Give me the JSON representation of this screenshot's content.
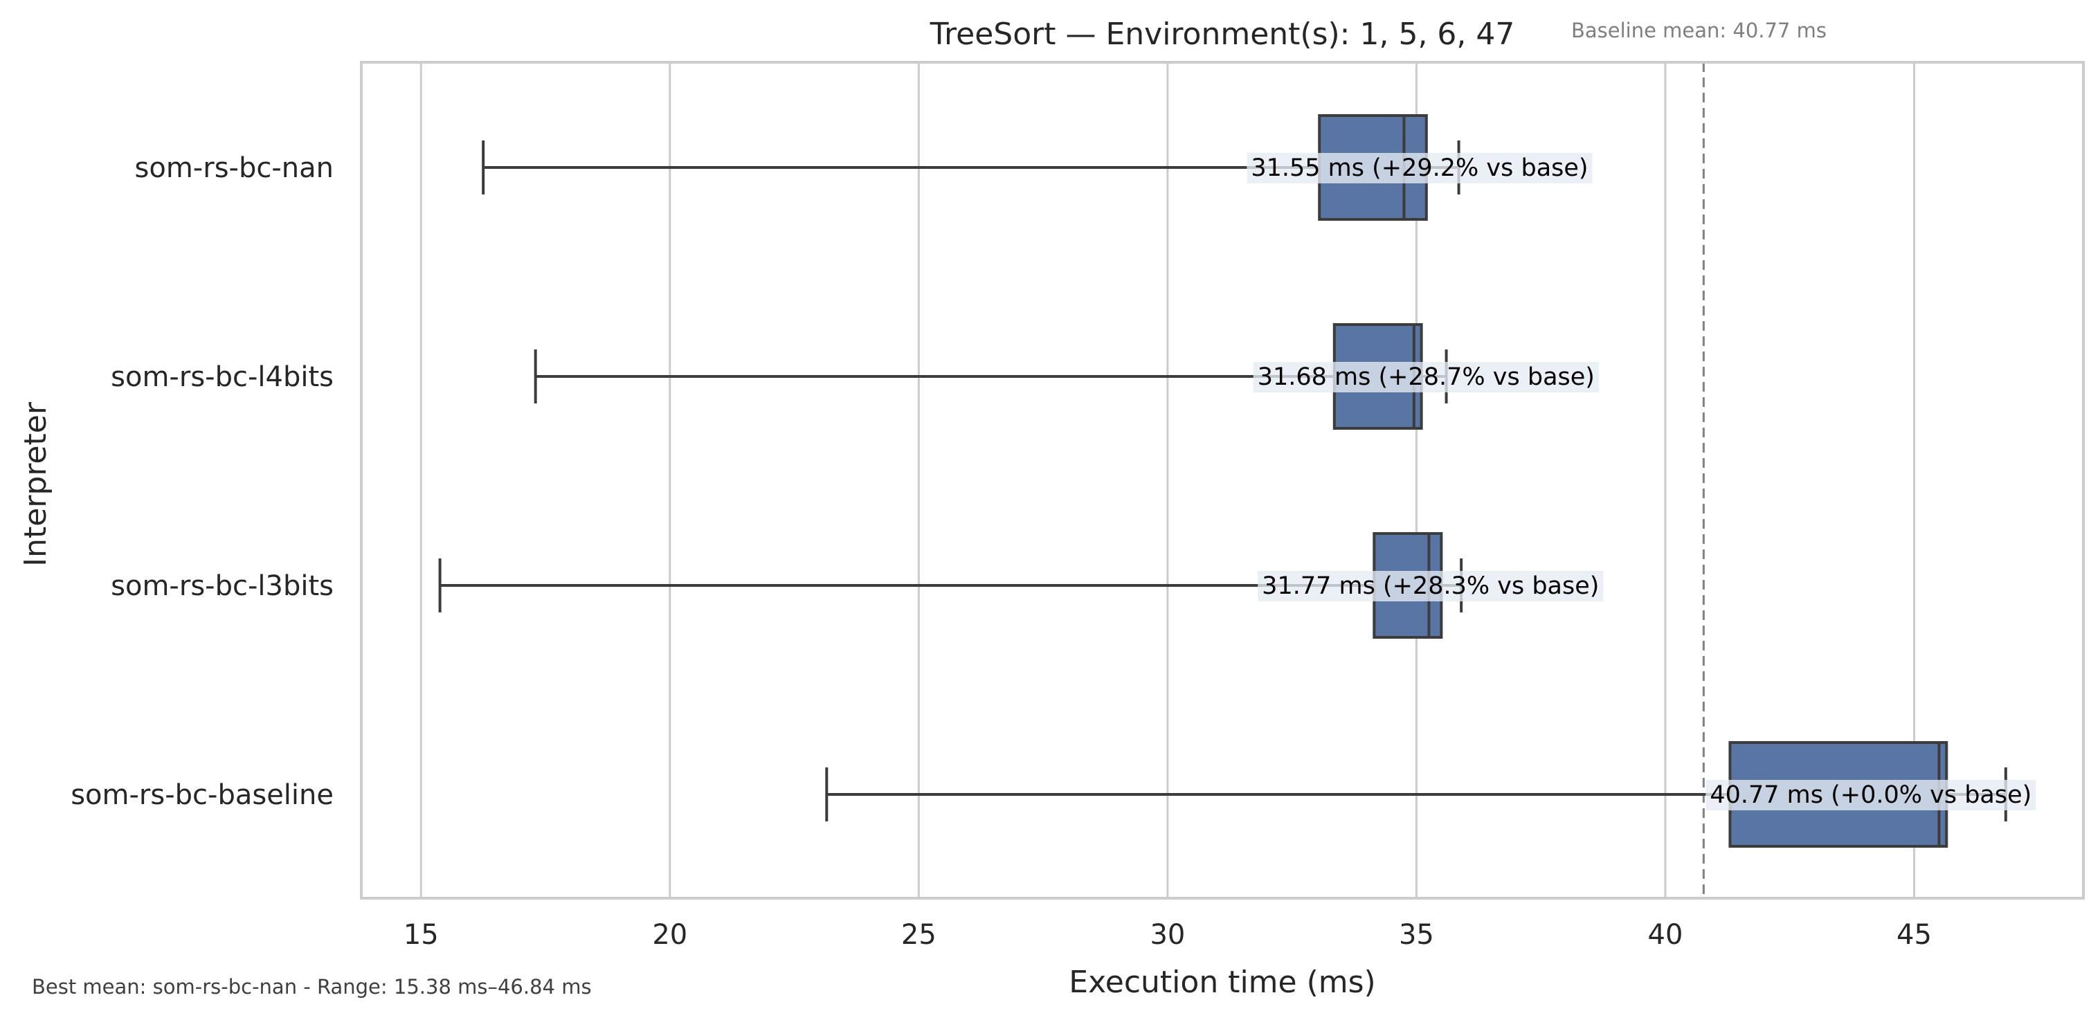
{
  "chart_data": {
    "type": "boxplot",
    "orientation": "horizontal",
    "title": "TreeSort — Environment(s): 1, 5, 6, 47",
    "subtitle": "Baseline mean: 40.77 ms",
    "xlabel": "Execution time (ms)",
    "ylabel": "Interpreter",
    "xlim": [
      13.8,
      48.4
    ],
    "xticks": [
      15,
      20,
      25,
      30,
      35,
      40,
      45
    ],
    "grid": "vertical",
    "baseline_line": 40.77,
    "footer": "Best mean: som-rs-bc-nan - Range: 15.38 ms–46.84 ms",
    "colors": {
      "box": "#5975a4",
      "box_edge": "#3c3c3c",
      "grid": "#cccccc",
      "baseline_line": "#808080",
      "label_bg": "#e6ebf4"
    },
    "series": [
      {
        "name": "som-rs-bc-nan",
        "whisker_low": 16.25,
        "q1": 33.05,
        "median": 34.75,
        "q3": 35.2,
        "whisker_high": 35.85,
        "mean": 31.55,
        "label": "31.55 ms  (+29.2% vs base)"
      },
      {
        "name": "som-rs-bc-l4bits",
        "whisker_low": 17.3,
        "q1": 33.35,
        "median": 34.95,
        "q3": 35.1,
        "whisker_high": 35.6,
        "mean": 31.68,
        "label": "31.68 ms  (+28.7% vs base)"
      },
      {
        "name": "som-rs-bc-l3bits",
        "whisker_low": 15.38,
        "q1": 34.15,
        "median": 35.25,
        "q3": 35.5,
        "whisker_high": 35.9,
        "mean": 31.77,
        "label": "31.77 ms  (+28.3% vs base)"
      },
      {
        "name": "som-rs-bc-baseline",
        "whisker_low": 23.15,
        "q1": 41.3,
        "median": 45.5,
        "q3": 45.65,
        "whisker_high": 46.84,
        "mean": 40.77,
        "label": "40.77 ms  (+0.0% vs base)"
      }
    ]
  }
}
